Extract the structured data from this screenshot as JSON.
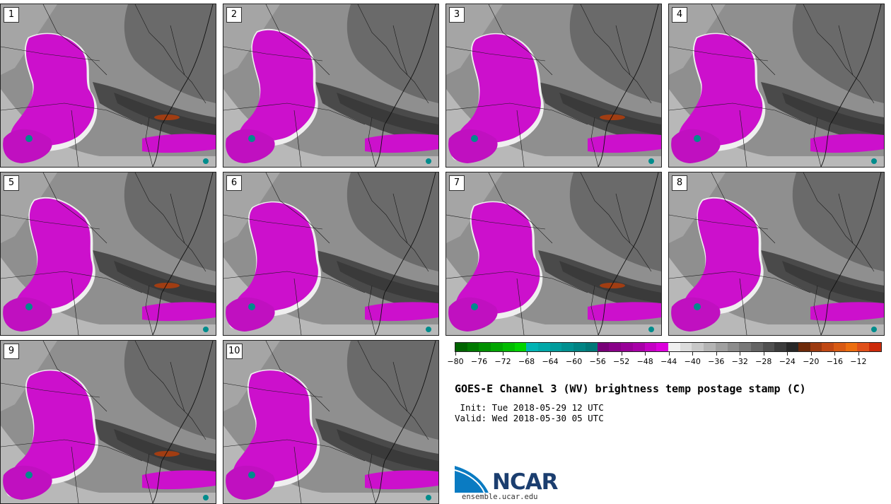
{
  "panels": [
    {
      "label": "1"
    },
    {
      "label": "2"
    },
    {
      "label": "3"
    },
    {
      "label": "4"
    },
    {
      "label": "5"
    },
    {
      "label": "6"
    },
    {
      "label": "7"
    },
    {
      "label": "8"
    },
    {
      "label": "9"
    },
    {
      "label": "10"
    }
  ],
  "colorbar": {
    "colors": [
      "#006400",
      "#007a00",
      "#009000",
      "#00a600",
      "#00bc00",
      "#00d400",
      "#00b4b4",
      "#00a8a8",
      "#009c9c",
      "#009090",
      "#008484",
      "#007878",
      "#780078",
      "#880088",
      "#980098",
      "#a800a8",
      "#c400c4",
      "#dc00dc",
      "#f0f0f0",
      "#dcdcdc",
      "#c8c8c8",
      "#b4b4b4",
      "#a0a0a0",
      "#8c8c8c",
      "#787878",
      "#646464",
      "#505050",
      "#3c3c3c",
      "#282828",
      "#6e2a0a",
      "#9c3a10",
      "#c04814",
      "#d85a14",
      "#ec6e10",
      "#e0501a",
      "#cc2a0a"
    ],
    "tick_labels": [
      "−80",
      "−76",
      "−72",
      "−68",
      "−64",
      "−60",
      "−56",
      "−52",
      "−48",
      "−44",
      "−40",
      "−36",
      "−32",
      "−28",
      "−24",
      "−20",
      "−16",
      "−12"
    ],
    "min": -80,
    "max": -10
  },
  "title": "GOES-E Channel 3 (WV) brightness temp postage stamp (C)",
  "init": " Init: Tue 2018-05-29 12 UTC",
  "valid": "Valid: Wed 2018-05-30 05 UTC",
  "logo": {
    "text": "NCAR",
    "site": "ensemble.ucar.edu",
    "blue": "#0a7bc2",
    "navy": "#1b3e6f"
  }
}
